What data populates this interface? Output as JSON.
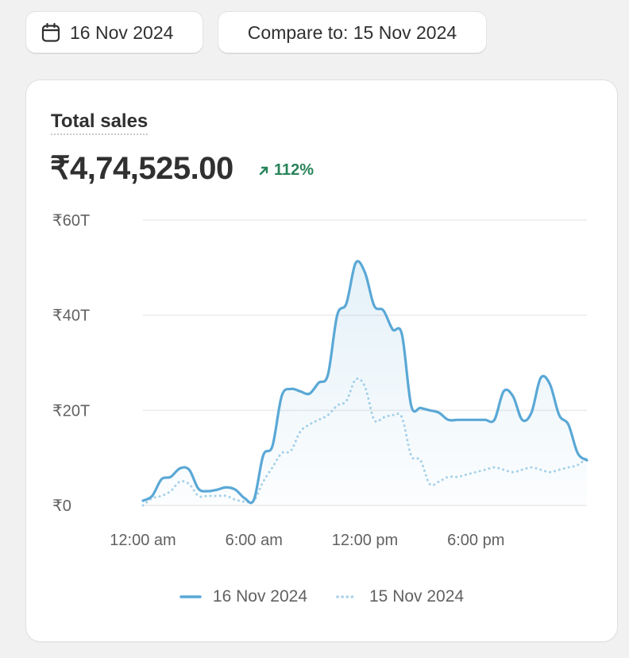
{
  "toolbar": {
    "date_label": "16 Nov 2024",
    "compare_label": "Compare to: 15 Nov 2024"
  },
  "metric": {
    "title": "Total sales",
    "value": "₹4,74,525.00",
    "change": "112%",
    "change_direction": "up",
    "change_color": "#29845a"
  },
  "icons": {
    "date_button": "calendar-icon",
    "change": "arrow-up-right-icon"
  },
  "chart_data": {
    "type": "area",
    "x_unit": "hour of day",
    "x_range": [
      0,
      24
    ],
    "x_ticks": [
      {
        "value": 0,
        "label": "12:00 am"
      },
      {
        "value": 6,
        "label": "6:00 am"
      },
      {
        "value": 12,
        "label": "12:00 pm"
      },
      {
        "value": 18,
        "label": "6:00 pm"
      }
    ],
    "y_ticks": [
      {
        "value": 0,
        "label": "₹0"
      },
      {
        "value": 20000,
        "label": "₹20T"
      },
      {
        "value": 40000,
        "label": "₹40T"
      },
      {
        "value": 60000,
        "label": "₹60T"
      }
    ],
    "ylim": [
      0,
      60000
    ],
    "grid": true,
    "legend_position": "bottom",
    "x": [
      0,
      0.5,
      1,
      1.5,
      2,
      2.5,
      3,
      3.5,
      4,
      4.5,
      5,
      5.5,
      6,
      6.5,
      7,
      7.5,
      8,
      8.5,
      9,
      9.5,
      10,
      10.5,
      11,
      11.5,
      12,
      12.5,
      13,
      13.5,
      14,
      14.5,
      15,
      15.5,
      16,
      16.5,
      17,
      17.5,
      18,
      18.5,
      19,
      19.5,
      20,
      20.5,
      21,
      21.5,
      22,
      22.5,
      23,
      23.5,
      24
    ],
    "series": [
      {
        "name": "16 Nov 2024",
        "color": "#5aa8d6",
        "style": "solid",
        "values": [
          1000,
          2000,
          5500,
          6000,
          7800,
          7500,
          3500,
          3000,
          3300,
          3800,
          3300,
          1500,
          1200,
          10500,
          12500,
          23000,
          24500,
          24000,
          23500,
          25800,
          27500,
          40000,
          42500,
          51000,
          49000,
          42000,
          41000,
          37000,
          36000,
          21000,
          20500,
          20000,
          19500,
          18000,
          18000,
          18000,
          18000,
          18000,
          18000,
          24000,
          23000,
          18000,
          19500,
          26800,
          25500,
          19000,
          17000,
          11000,
          9500
        ]
      },
      {
        "name": "15 Nov 2024",
        "color": "#a8d2ea",
        "style": "dotted",
        "values": [
          0,
          1500,
          2000,
          3000,
          5000,
          4500,
          2000,
          2000,
          2000,
          2000,
          1200,
          800,
          1000,
          5000,
          8000,
          11000,
          11500,
          15500,
          17000,
          18000,
          19000,
          21000,
          22000,
          26500,
          25000,
          18000,
          18500,
          19000,
          18500,
          10500,
          9500,
          4500,
          5000,
          6000,
          6000,
          6500,
          7000,
          7500,
          8000,
          7500,
          7000,
          7500,
          8000,
          7500,
          7000,
          7500,
          8000,
          8500,
          10000
        ]
      }
    ]
  }
}
